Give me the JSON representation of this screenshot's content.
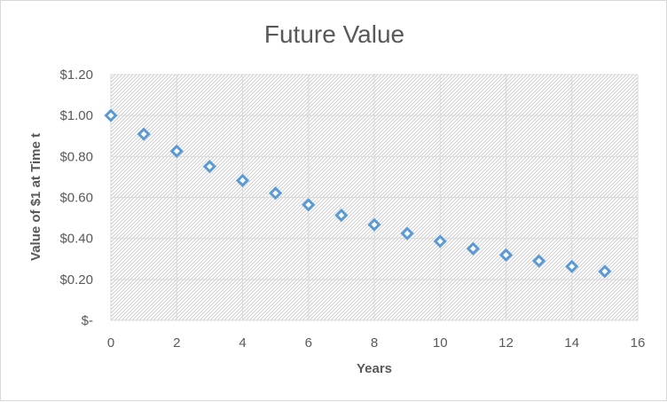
{
  "chart_data": {
    "type": "scatter",
    "title": "Future Value",
    "xlabel": "Years",
    "ylabel": "Value of $1 at Time t",
    "xlim": [
      0,
      16
    ],
    "ylim": [
      0,
      1.2
    ],
    "x_ticks": [
      0,
      2,
      4,
      6,
      8,
      10,
      12,
      14,
      16
    ],
    "x_tick_labels": [
      "0",
      "2",
      "4",
      "6",
      "8",
      "10",
      "12",
      "14",
      "16"
    ],
    "y_ticks": [
      0,
      0.2,
      0.4,
      0.6,
      0.8,
      1.0,
      1.2
    ],
    "y_tick_labels": [
      "$-",
      "$0.20",
      "$0.40",
      "$0.60",
      "$0.80",
      "$1.00",
      "$1.20"
    ],
    "grid": true,
    "legend": "none",
    "marker": "hollow-diamond",
    "series_color": "#5b9bd5",
    "x": [
      0,
      1,
      2,
      3,
      4,
      5,
      6,
      7,
      8,
      9,
      10,
      11,
      12,
      13,
      14,
      15
    ],
    "y": [
      1.0,
      0.909,
      0.826,
      0.751,
      0.683,
      0.621,
      0.564,
      0.513,
      0.467,
      0.424,
      0.386,
      0.35,
      0.319,
      0.29,
      0.263,
      0.239
    ]
  }
}
